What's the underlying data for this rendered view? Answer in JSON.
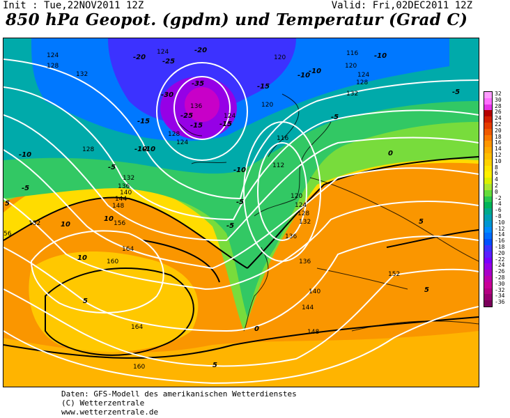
{
  "header": {
    "init": "Init : Tue,22NOV2011  12Z",
    "valid": "Valid: Fri,02DEC2011  12Z",
    "title": "850 hPa Geopot. (gpdm) und Temperatur (Grad C)"
  },
  "colorbar": {
    "labels": [
      "32",
      "30",
      "28",
      "26",
      "24",
      "22",
      "20",
      "18",
      "16",
      "14",
      "12",
      "10",
      "8",
      "6",
      "4",
      "2",
      "0",
      "-2",
      "-4",
      "-6",
      "-8",
      "-10",
      "-12",
      "-14",
      "-16",
      "-18",
      "-20",
      "-22",
      "-24",
      "-26",
      "-28",
      "-30",
      "-32",
      "-34",
      "-36"
    ],
    "colors": [
      "#ff9cff",
      "#ff6eff",
      "#e632e6",
      "#b40000",
      "#d21e00",
      "#e63c00",
      "#f05a00",
      "#fa7800",
      "#ff9600",
      "#ffaa00",
      "#ffbe00",
      "#ffd200",
      "#ffe600",
      "#fff000",
      "#dcf000",
      "#aae632",
      "#64dc3c",
      "#28c850",
      "#00b45a",
      "#00aa8c",
      "#00a0b4",
      "#0096d2",
      "#008cff",
      "#006eff",
      "#0050ff",
      "#3c32ff",
      "#5a1eff",
      "#7800ff",
      "#9600e6",
      "#aa00c8",
      "#be00aa",
      "#c80096",
      "#b40082",
      "#960070",
      "#7a005a"
    ]
  },
  "geopotential_labels": [
    "124",
    "128",
    "132",
    "124",
    "120",
    "116",
    "120",
    "124",
    "128",
    "132",
    "136",
    "128",
    "124",
    "120",
    "124",
    "128",
    "132",
    "136",
    "140",
    "144",
    "148",
    "152",
    "156",
    "160",
    "164",
    "164",
    "160",
    "116",
    "112",
    "120",
    "124",
    "128",
    "132",
    "136",
    "136",
    "140",
    "144",
    "148",
    "152",
    "56"
  ],
  "temperature_labels": [
    "-20",
    "-25",
    "-30",
    "-35",
    "-25",
    "-20",
    "-15",
    "-10",
    "-10",
    "-15",
    "-10",
    "-5",
    "-10",
    "-10",
    "-15",
    "-5",
    "-5",
    "-10",
    "-5",
    "-5",
    "0",
    "5",
    "10",
    "10",
    "10",
    "5",
    "0",
    "5",
    "5",
    "5",
    "-15",
    "-5",
    "-10"
  ],
  "footer": {
    "line1": "Daten: GFS-Modell des amerikanischen Wetterdienstes",
    "line2": "(C) Wetterzentrale",
    "line3": "www.wetterzentrale.de"
  }
}
